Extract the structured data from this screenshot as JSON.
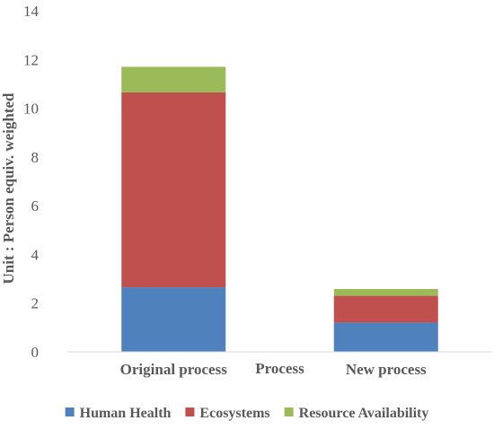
{
  "chart_data": {
    "type": "bar",
    "stacked": true,
    "title": "",
    "xlabel": "Process",
    "ylabel": "Unit : Person equiv. weighted",
    "ylim": [
      0,
      14
    ],
    "yticks": [
      0,
      2,
      4,
      6,
      8,
      10,
      12,
      14
    ],
    "grid": false,
    "legend_position": "bottom",
    "categories": [
      "Original process",
      "New process"
    ],
    "series": [
      {
        "name": "Human Health",
        "color": "#4f81bd",
        "values": [
          2.65,
          1.2
        ]
      },
      {
        "name": "Ecosystems",
        "color": "#c0504d",
        "values": [
          8.0,
          1.1
        ]
      },
      {
        "name": "Resource Availability",
        "color": "#9bbb59",
        "values": [
          1.05,
          0.28
        ]
      }
    ]
  }
}
